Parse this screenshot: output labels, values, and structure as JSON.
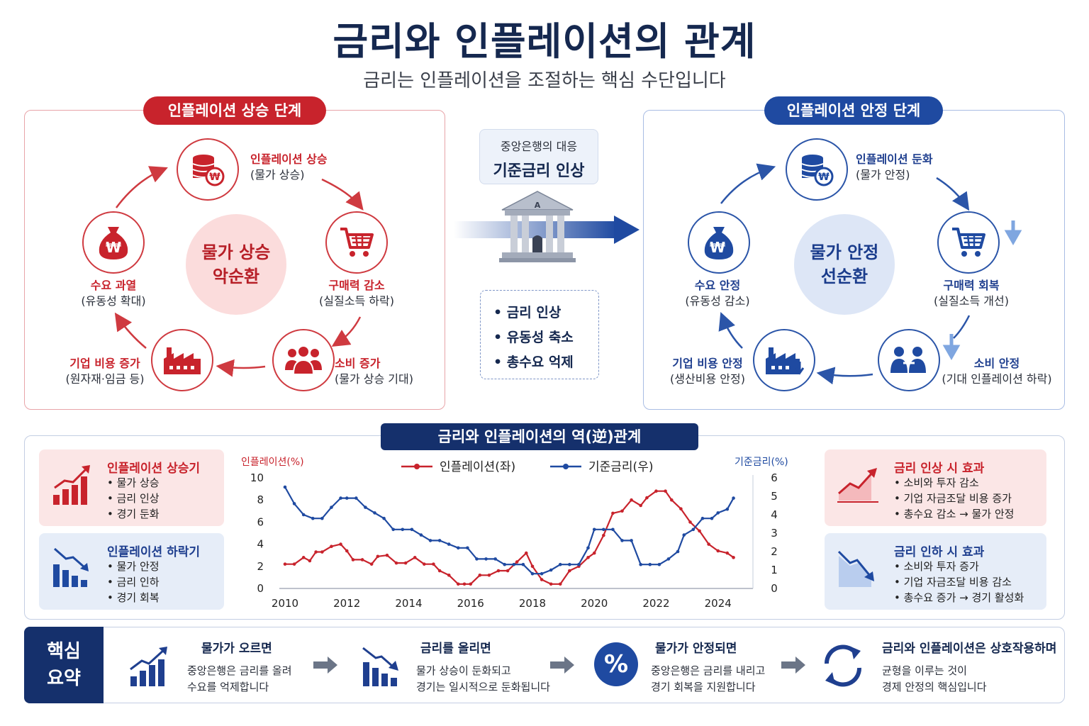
{
  "header": {
    "title": "금리와 인플레이션의 관계",
    "subtitle": "금리는 인플레이션을 조절하는 핵심 수단입니다"
  },
  "rising": {
    "badge": "인플레이션 상승 단계",
    "center_line1": "물가 상승",
    "center_line2": "악순환",
    "nodes": [
      {
        "title": "인플레이션 상승",
        "sub": "(물가 상승)"
      },
      {
        "title": "구매력 감소",
        "sub": "(실질소득 하락)"
      },
      {
        "title": "소비 증가",
        "sub": "(물가 상승 기대)"
      },
      {
        "title": "기업 비용 증가",
        "sub": "(원자재·임금 등)"
      },
      {
        "title": "수요 과열",
        "sub": "(유동성 확대)"
      }
    ]
  },
  "stable": {
    "badge": "인플레이션 안정 단계",
    "center_line1": "물가 안정",
    "center_line2": "선순환",
    "nodes": [
      {
        "title": "인플레이션 둔화",
        "sub": "(물가 안정)"
      },
      {
        "title": "구매력 회복",
        "sub": "(실질소득 개선)"
      },
      {
        "title": "소비 안정",
        "sub": "(기대 인플레이션 하락)"
      },
      {
        "title": "기업 비용 안정",
        "sub": "(생산비용 안정)"
      },
      {
        "title": "수요 안정",
        "sub": "(유동성 감소)"
      }
    ]
  },
  "central_bank": {
    "label": "중앙은행의 대응",
    "action": "기준금리 인상",
    "building_letter": "A",
    "effects": [
      "• 금리 인상",
      "• 유동성 축소",
      "• 총수요 억제"
    ]
  },
  "relation": {
    "badge": "금리와 인플레이션의 역(逆)관계",
    "left_cards": [
      {
        "title": "인플레이션 상승기",
        "items": [
          "물가 상승",
          "금리 인상",
          "경기 둔화"
        ]
      },
      {
        "title": "인플레이션 하락기",
        "items": [
          "물가 안정",
          "금리 인하",
          "경기 회복"
        ]
      }
    ],
    "right_cards": [
      {
        "title": "금리 인상 시 효과",
        "items": [
          "소비와 투자 감소",
          "기업 자금조달 비용 증가",
          "총수요 감소 → 물가 안정"
        ]
      },
      {
        "title": "금리 인하 시 효과",
        "items": [
          "소비와 투자 증가",
          "기업 자금조달 비용 감소",
          "총수요 증가 → 경기 활성화"
        ]
      }
    ]
  },
  "chart_data": {
    "type": "line",
    "ylabel_left": "인플레이션(%)",
    "ylabel_right": "기준금리(%)",
    "ylim_left": [
      0,
      10
    ],
    "ylim_right": [
      0,
      6
    ],
    "yticks_left": [
      "0",
      "2",
      "4",
      "6",
      "8",
      "10"
    ],
    "yticks_right": [
      "0",
      "1",
      "2",
      "3",
      "4",
      "5",
      "6"
    ],
    "xlim": [
      2010,
      2024.9
    ],
    "xticks": [
      "2010",
      "2012",
      "2014",
      "2016",
      "2018",
      "2020",
      "2022",
      "2024"
    ],
    "legend_position": "top-center",
    "grid": false,
    "series": [
      {
        "name": "인플레이션(좌)",
        "color": "#c8232c",
        "axis": "left",
        "x": [
          2010.0,
          2010.3,
          2010.6,
          2010.8,
          2011.0,
          2011.2,
          2011.5,
          2011.8,
          2012.0,
          2012.2,
          2012.5,
          2012.8,
          2013.0,
          2013.3,
          2013.6,
          2013.9,
          2014.2,
          2014.5,
          2014.8,
          2015.0,
          2015.3,
          2015.6,
          2015.8,
          2016.0,
          2016.3,
          2016.6,
          2016.9,
          2017.2,
          2017.5,
          2017.8,
          2018.0,
          2018.3,
          2018.6,
          2018.9,
          2019.2,
          2019.5,
          2019.8,
          2020.0,
          2020.3,
          2020.6,
          2020.9,
          2021.2,
          2021.5,
          2021.7,
          2022.0,
          2022.3,
          2022.5,
          2022.8,
          2023.1,
          2023.4,
          2023.7,
          2024.0,
          2024.3,
          2024.5
        ],
        "y": [
          2.2,
          2.2,
          2.8,
          2.5,
          3.3,
          3.3,
          3.8,
          4.0,
          3.4,
          2.6,
          2.6,
          2.2,
          2.9,
          3.0,
          2.3,
          2.3,
          2.8,
          2.2,
          2.2,
          1.6,
          1.2,
          0.4,
          0.4,
          0.4,
          1.2,
          1.2,
          1.6,
          1.6,
          2.4,
          3.2,
          2.0,
          0.8,
          0.4,
          0.4,
          1.6,
          2.0,
          2.8,
          3.2,
          4.8,
          6.8,
          7.0,
          8.0,
          7.5,
          8.2,
          8.8,
          8.8,
          8.0,
          7.2,
          6.0,
          5.2,
          4.0,
          3.4,
          3.2,
          2.8
        ]
      },
      {
        "name": "기준금리(우)",
        "color": "#1f4aa1",
        "axis": "right",
        "x": [
          2010.0,
          2010.3,
          2010.6,
          2010.9,
          2011.2,
          2011.5,
          2011.8,
          2012.0,
          2012.3,
          2012.6,
          2012.9,
          2013.2,
          2013.5,
          2013.8,
          2014.1,
          2014.4,
          2014.7,
          2015.0,
          2015.3,
          2015.6,
          2015.9,
          2016.2,
          2016.5,
          2016.8,
          2017.1,
          2017.4,
          2017.7,
          2018.0,
          2018.3,
          2018.6,
          2018.9,
          2019.2,
          2019.5,
          2019.8,
          2020.0,
          2020.3,
          2020.6,
          2020.9,
          2021.2,
          2021.5,
          2021.8,
          2022.1,
          2022.4,
          2022.7,
          2022.9,
          2023.2,
          2023.5,
          2023.8,
          2024.0,
          2024.3,
          2024.5
        ],
        "y": [
          5.5,
          4.6,
          4.0,
          3.8,
          3.8,
          4.4,
          4.9,
          4.9,
          4.9,
          4.4,
          4.1,
          3.8,
          3.2,
          3.2,
          3.2,
          2.9,
          2.6,
          2.6,
          2.4,
          2.2,
          2.2,
          1.6,
          1.6,
          1.6,
          1.3,
          1.3,
          1.3,
          0.8,
          0.8,
          1.0,
          1.3,
          1.3,
          1.3,
          2.2,
          3.2,
          3.2,
          3.2,
          2.6,
          2.6,
          1.3,
          1.3,
          1.3,
          1.6,
          2.0,
          2.9,
          3.2,
          3.8,
          3.8,
          4.1,
          4.3,
          4.9
        ]
      }
    ]
  },
  "summary": {
    "tag_line1": "핵심",
    "tag_line2": "요약",
    "items": [
      {
        "title": "물가가 오르면",
        "line1": "중앙은행은 금리를 올려",
        "line2": "수요를 억제합니다"
      },
      {
        "title": "금리를 올리면",
        "line1": "물가 상승이 둔화되고",
        "line2": "경기는 일시적으로 둔화됩니다"
      },
      {
        "title": "물가가 안정되면",
        "line1": "중앙은행은 금리를 내리고",
        "line2": "경기 회복을 지원합니다"
      },
      {
        "title": "금리와 인플레이션은 상호작용하며",
        "line1": "균형을 이루는 것이",
        "line2": "경제 안정의 핵심입니다"
      }
    ],
    "percent_symbol": "%"
  },
  "colors": {
    "red": "#c8232c",
    "blue": "#1f4aa1",
    "navy": "#15306c"
  },
  "icons": [
    "coin-stack-icon",
    "shopping-cart-icon",
    "people-icon",
    "factory-icon",
    "money-bag-icon",
    "bank-building-icon",
    "rising-chart-icon",
    "falling-chart-icon",
    "percent-icon",
    "cycle-icon"
  ]
}
